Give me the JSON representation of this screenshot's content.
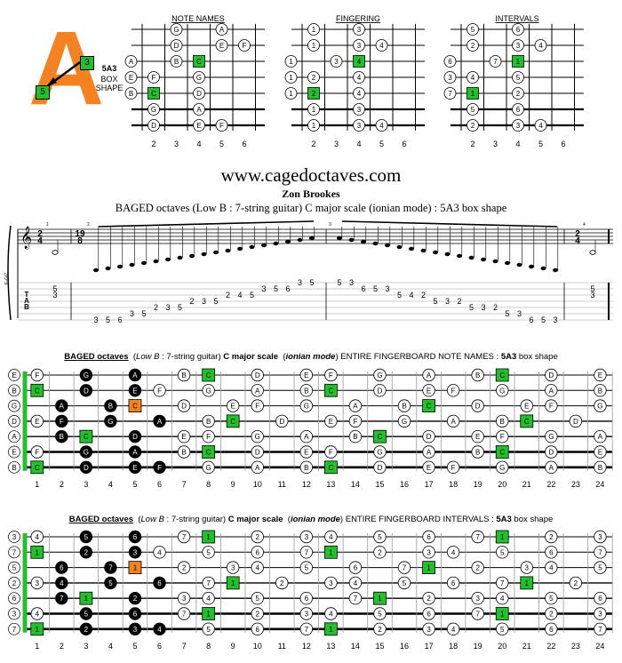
{
  "logo": {
    "letter": "A",
    "chip_top": "3",
    "chip_bottom": "5",
    "shape_name": "5A3",
    "shape_line2": "BOX",
    "shape_line3": "SHAPE"
  },
  "website": "www.cagedoctaves.com",
  "author": "Zon Brookes",
  "subtitle": "BAGED octaves (Low B : 7-string guitar) C major scale (ionian mode) : 5A3 box shape",
  "colors": {
    "root": "#22c02a",
    "shape_octave": "#f58220",
    "black_note": "#000000",
    "open_note": "#ffffff",
    "logo_orange": "#f58220",
    "string_count_bar": "#22c02a"
  },
  "mini_diagrams": [
    {
      "title": "NOTE NAMES",
      "fret_numbers": [
        "2",
        "3",
        "4",
        "5",
        "6"
      ],
      "notes": [
        {
          "s": 0,
          "f": 3,
          "t": "G",
          "k": "w"
        },
        {
          "s": 0,
          "f": 5,
          "t": "A",
          "k": "w"
        },
        {
          "s": 1,
          "f": 3,
          "t": "D",
          "k": "w"
        },
        {
          "s": 1,
          "f": 5,
          "t": "E",
          "k": "w"
        },
        {
          "s": 1,
          "f": 6,
          "t": "F",
          "k": "w"
        },
        {
          "s": 2,
          "f": 1,
          "t": "A",
          "k": "w"
        },
        {
          "s": 2,
          "f": 3,
          "t": "B",
          "k": "w"
        },
        {
          "s": 2,
          "f": 4,
          "t": "C",
          "k": "g"
        },
        {
          "s": 3,
          "f": 1,
          "t": "E",
          "k": "w"
        },
        {
          "s": 3,
          "f": 2,
          "t": "F",
          "k": "w"
        },
        {
          "s": 3,
          "f": 4,
          "t": "G",
          "k": "w"
        },
        {
          "s": 4,
          "f": 1,
          "t": "B",
          "k": "w"
        },
        {
          "s": 4,
          "f": 2,
          "t": "C",
          "k": "g"
        },
        {
          "s": 4,
          "f": 4,
          "t": "D",
          "k": "w"
        },
        {
          "s": 5,
          "f": 2,
          "t": "G",
          "k": "w"
        },
        {
          "s": 5,
          "f": 4,
          "t": "A",
          "k": "w"
        },
        {
          "s": 6,
          "f": 2,
          "t": "D",
          "k": "w"
        },
        {
          "s": 6,
          "f": 4,
          "t": "E",
          "k": "w"
        },
        {
          "s": 6,
          "f": 5,
          "t": "F",
          "k": "w"
        }
      ]
    },
    {
      "title": "FINGERING",
      "fret_numbers": [
        "2",
        "3",
        "4",
        "5",
        "6"
      ],
      "notes": [
        {
          "s": 0,
          "f": 2,
          "t": "1",
          "k": "w"
        },
        {
          "s": 0,
          "f": 4,
          "t": "3",
          "k": "w"
        },
        {
          "s": 1,
          "f": 2,
          "t": "1",
          "k": "w"
        },
        {
          "s": 1,
          "f": 4,
          "t": "3",
          "k": "w"
        },
        {
          "s": 1,
          "f": 5,
          "t": "4",
          "k": "w"
        },
        {
          "s": 2,
          "f": 1,
          "t": "1",
          "k": "w"
        },
        {
          "s": 2,
          "f": 3,
          "t": "3",
          "k": "w"
        },
        {
          "s": 2,
          "f": 4,
          "t": "4",
          "k": "g"
        },
        {
          "s": 3,
          "f": 1,
          "t": "1",
          "k": "w"
        },
        {
          "s": 3,
          "f": 2,
          "t": "2",
          "k": "w"
        },
        {
          "s": 3,
          "f": 4,
          "t": "4",
          "k": "w"
        },
        {
          "s": 4,
          "f": 1,
          "t": "1",
          "k": "w"
        },
        {
          "s": 4,
          "f": 2,
          "t": "2",
          "k": "g"
        },
        {
          "s": 4,
          "f": 4,
          "t": "4",
          "k": "w"
        },
        {
          "s": 5,
          "f": 2,
          "t": "1",
          "k": "w"
        },
        {
          "s": 5,
          "f": 4,
          "t": "3",
          "k": "w"
        },
        {
          "s": 6,
          "f": 2,
          "t": "1",
          "k": "w"
        },
        {
          "s": 6,
          "f": 4,
          "t": "3",
          "k": "w"
        },
        {
          "s": 6,
          "f": 5,
          "t": "4",
          "k": "w"
        }
      ]
    },
    {
      "title": "INTERVALS",
      "fret_numbers": [
        "2",
        "3",
        "4",
        "5",
        "6"
      ],
      "notes": [
        {
          "s": 0,
          "f": 2,
          "t": "5",
          "k": "w"
        },
        {
          "s": 0,
          "f": 4,
          "t": "6",
          "k": "w"
        },
        {
          "s": 1,
          "f": 2,
          "t": "2",
          "k": "w"
        },
        {
          "s": 1,
          "f": 4,
          "t": "3",
          "k": "w"
        },
        {
          "s": 1,
          "f": 5,
          "t": "4",
          "k": "w"
        },
        {
          "s": 2,
          "f": 1,
          "t": "6",
          "k": "w"
        },
        {
          "s": 2,
          "f": 3,
          "t": "7",
          "k": "w"
        },
        {
          "s": 2,
          "f": 4,
          "t": "1",
          "k": "g"
        },
        {
          "s": 3,
          "f": 1,
          "t": "3",
          "k": "w"
        },
        {
          "s": 3,
          "f": 2,
          "t": "4",
          "k": "w"
        },
        {
          "s": 3,
          "f": 4,
          "t": "5",
          "k": "w"
        },
        {
          "s": 4,
          "f": 1,
          "t": "7",
          "k": "w"
        },
        {
          "s": 4,
          "f": 2,
          "t": "1",
          "k": "g"
        },
        {
          "s": 4,
          "f": 4,
          "t": "2",
          "k": "w"
        },
        {
          "s": 5,
          "f": 2,
          "t": "5",
          "k": "w"
        },
        {
          "s": 5,
          "f": 4,
          "t": "6",
          "k": "w"
        },
        {
          "s": 6,
          "f": 2,
          "t": "2",
          "k": "w"
        },
        {
          "s": 6,
          "f": 4,
          "t": "3",
          "k": "w"
        },
        {
          "s": 6,
          "f": 5,
          "t": "4",
          "k": "w"
        }
      ]
    }
  ],
  "notation": {
    "time_sig_start": [
      "2",
      "4"
    ],
    "time_sig_mid": [
      "19",
      "8"
    ],
    "time_sig_end": [
      "2",
      "4"
    ],
    "instrument_label": "E-Gt7",
    "measure_numbers": [
      "1",
      "2",
      "3",
      "4"
    ],
    "tab_letters": [
      "T",
      "A",
      "B"
    ],
    "tab_bar1": [
      {
        "str": 2,
        "fret": "5"
      },
      {
        "str": 3,
        "fret": "3"
      }
    ],
    "tab_ascending": [
      {
        "str": 7,
        "fret": "3"
      },
      {
        "str": 7,
        "fret": "5"
      },
      {
        "str": 7,
        "fret": "6"
      },
      {
        "str": 6,
        "fret": "3"
      },
      {
        "str": 6,
        "fret": "5"
      },
      {
        "str": 5,
        "fret": "2"
      },
      {
        "str": 5,
        "fret": "3"
      },
      {
        "str": 5,
        "fret": "5"
      },
      {
        "str": 4,
        "fret": "2"
      },
      {
        "str": 4,
        "fret": "3"
      },
      {
        "str": 4,
        "fret": "5"
      },
      {
        "str": 3,
        "fret": "2"
      },
      {
        "str": 3,
        "fret": "4"
      },
      {
        "str": 3,
        "fret": "5"
      },
      {
        "str": 2,
        "fret": "3"
      },
      {
        "str": 2,
        "fret": "5"
      },
      {
        "str": 2,
        "fret": "6"
      },
      {
        "str": 1,
        "fret": "3"
      },
      {
        "str": 1,
        "fret": "5"
      }
    ],
    "tab_descending": [
      {
        "str": 1,
        "fret": "5"
      },
      {
        "str": 1,
        "fret": "3"
      },
      {
        "str": 2,
        "fret": "6"
      },
      {
        "str": 2,
        "fret": "5"
      },
      {
        "str": 2,
        "fret": "3"
      },
      {
        "str": 3,
        "fret": "5"
      },
      {
        "str": 3,
        "fret": "4"
      },
      {
        "str": 3,
        "fret": "2"
      },
      {
        "str": 4,
        "fret": "5"
      },
      {
        "str": 4,
        "fret": "3"
      },
      {
        "str": 4,
        "fret": "2"
      },
      {
        "str": 5,
        "fret": "5"
      },
      {
        "str": 5,
        "fret": "3"
      },
      {
        "str": 5,
        "fret": "2"
      },
      {
        "str": 6,
        "fret": "5"
      },
      {
        "str": 6,
        "fret": "3"
      },
      {
        "str": 7,
        "fret": "6"
      },
      {
        "str": 7,
        "fret": "5"
      },
      {
        "str": 7,
        "fret": "3"
      }
    ],
    "tab_bar4": [
      {
        "str": 2,
        "fret": "5"
      },
      {
        "str": 3,
        "fret": "3"
      }
    ]
  },
  "fingerboards": [
    {
      "title_bold": "BAGED octaves",
      "title_italic": "Low B",
      "title_mid": " : 7-string guitar)",
      "title_scale": "C major scale",
      "title_mode": "ionian mode",
      "title_rest": " ENTIRE FINGERBOARD  NOTE NAMES  :",
      "title_shape": "5A3",
      "title_end": " box shape",
      "open": [
        "E",
        "B",
        "G",
        "D",
        "A",
        "E",
        "B"
      ],
      "strings": [
        [
          "F",
          "",
          "G",
          "",
          "A",
          "",
          "B",
          "C",
          "",
          "D",
          "",
          "E",
          "F",
          "",
          "G",
          "",
          "A",
          "",
          "B",
          "C",
          "",
          "D",
          "",
          "E"
        ],
        [
          "C",
          "",
          "D",
          "",
          "E",
          "F",
          "",
          "G",
          "",
          "A",
          "",
          "B",
          "C",
          "",
          "D",
          "",
          "E",
          "F",
          "",
          "G",
          "",
          "A",
          "",
          "B"
        ],
        [
          "",
          "A",
          "",
          "B",
          "C",
          "",
          "D",
          "",
          "E",
          "F",
          "",
          "G",
          "",
          "A",
          "",
          "B",
          "C",
          "",
          "D",
          "",
          "E",
          "F",
          "",
          "G"
        ],
        [
          "E",
          "F",
          "",
          "G",
          "",
          "A",
          "",
          "B",
          "C",
          "",
          "D",
          "",
          "E",
          "F",
          "",
          "G",
          "",
          "A",
          "",
          "B",
          "C",
          "",
          "D",
          ""
        ],
        [
          "",
          "B",
          "C",
          "",
          "D",
          "",
          "E",
          "F",
          "",
          "G",
          "",
          "A",
          "",
          "B",
          "C",
          "",
          "D",
          "",
          "E",
          "F",
          "",
          "G",
          "",
          "A"
        ],
        [
          "F",
          "",
          "G",
          "",
          "A",
          "",
          "B",
          "C",
          "",
          "D",
          "",
          "E",
          "F",
          "",
          "G",
          "",
          "A",
          "",
          "B",
          "C",
          "",
          "D",
          "",
          "E"
        ],
        [
          "C",
          "",
          "D",
          "",
          "E",
          "F",
          "",
          "G",
          "",
          "A",
          "",
          "B",
          "C",
          "",
          "D",
          "",
          "E",
          "F",
          "",
          "G",
          "",
          "A",
          "",
          "B"
        ]
      ],
      "fret_numbers": [
        "1",
        "2",
        "3",
        "4",
        "5",
        "6",
        "7",
        "8",
        "9",
        "10",
        "11",
        "12",
        "13",
        "14",
        "15",
        "16",
        "17",
        "18",
        "19",
        "20",
        "21",
        "22",
        "23",
        "24"
      ]
    },
    {
      "title_bold": "BAGED octaves",
      "title_italic": "Low B",
      "title_mid": " : 7-string guitar)",
      "title_scale": "C major scale",
      "title_mode": "ionian mode",
      "title_rest": " ENTIRE FINGERBOARD  INTERVALS  :",
      "title_shape": "5A3",
      "title_end": " box shape",
      "open": [
        "3",
        "7",
        "5",
        "2",
        "6",
        "3",
        "7"
      ],
      "strings": [
        [
          "4",
          "",
          "5",
          "",
          "6",
          "",
          "7",
          "1",
          "",
          "2",
          "",
          "3",
          "4",
          "",
          "5",
          "",
          "6",
          "",
          "7",
          "1",
          "",
          "2",
          "",
          "3"
        ],
        [
          "1",
          "",
          "2",
          "",
          "3",
          "4",
          "",
          "5",
          "",
          "6",
          "",
          "7",
          "1",
          "",
          "2",
          "",
          "3",
          "4",
          "",
          "5",
          "",
          "6",
          "",
          "7"
        ],
        [
          "",
          "6",
          "",
          "7",
          "1",
          "",
          "2",
          "",
          "3",
          "4",
          "",
          "5",
          "",
          "6",
          "",
          "7",
          "1",
          "",
          "2",
          "",
          "3",
          "4",
          "",
          "5"
        ],
        [
          "3",
          "4",
          "",
          "5",
          "",
          "6",
          "",
          "7",
          "1",
          "",
          "2",
          "",
          "3",
          "4",
          "",
          "5",
          "",
          "6",
          "",
          "7",
          "1",
          "",
          "2",
          ""
        ],
        [
          "",
          "7",
          "1",
          "",
          "2",
          "",
          "3",
          "4",
          "",
          "5",
          "",
          "6",
          "",
          "7",
          "1",
          "",
          "2",
          "",
          "3",
          "4",
          "",
          "5",
          "",
          "6"
        ],
        [
          "4",
          "",
          "5",
          "",
          "6",
          "",
          "7",
          "1",
          "",
          "2",
          "",
          "3",
          "4",
          "",
          "5",
          "",
          "6",
          "",
          "7",
          "1",
          "",
          "2",
          "",
          "3"
        ],
        [
          "1",
          "",
          "2",
          "",
          "3",
          "4",
          "",
          "5",
          "",
          "6",
          "",
          "7",
          "1",
          "",
          "2",
          "",
          "3",
          "4",
          "",
          "5",
          "",
          "6",
          "",
          "7"
        ]
      ],
      "fret_numbers": [
        "1",
        "2",
        "3",
        "4",
        "5",
        "6",
        "7",
        "8",
        "9",
        "10",
        "11",
        "12",
        "13",
        "14",
        "15",
        "16",
        "17",
        "18",
        "19",
        "20",
        "21",
        "22",
        "23",
        "24"
      ]
    }
  ]
}
